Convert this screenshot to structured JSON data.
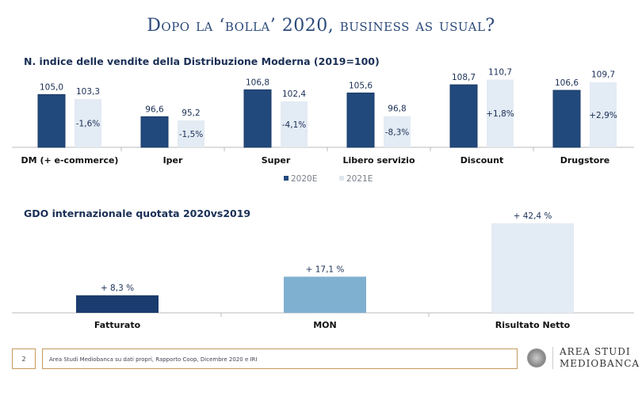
{
  "title": "Dopo la ‘bolla’ 2020, business as usual?",
  "chart_data": [
    {
      "type": "bar",
      "title": "N. indice delle vendite della Distribuzione Moderna  (2019=100)",
      "categories": [
        "DM (+ e-commerce)",
        "Iper",
        "Super",
        "Libero servizio",
        "Discount",
        "Drugstore"
      ],
      "series": [
        {
          "name": "2020E",
          "color": "#22497c",
          "values": [
            105.0,
            96.6,
            106.8,
            105.6,
            108.7,
            106.6
          ],
          "labels": [
            "105,0",
            "96,6",
            "106,8",
            "105,6",
            "108,7",
            "106,6"
          ]
        },
        {
          "name": "2021E",
          "color": "#e3ebf4",
          "values": [
            103.3,
            95.2,
            102.4,
            96.8,
            110.7,
            109.7
          ],
          "labels": [
            "103,3",
            "95,2",
            "102,4",
            "96,8",
            "110,7",
            "109,7"
          ],
          "changes": [
            "-1,6%",
            "-1,5%",
            "-4,1%",
            "-8,3%",
            "+1,8%",
            "+2,9%"
          ]
        }
      ],
      "ylim": [
        85,
        115
      ],
      "legend": "bottom"
    },
    {
      "type": "bar",
      "title": "GDO internazionale quotata 2020vs2019",
      "categories": [
        "Fatturato",
        "MON",
        "Risultato Netto"
      ],
      "values": [
        8.3,
        17.1,
        42.4
      ],
      "labels": [
        "+ 8,3 %",
        "+ 17,1 %",
        "+ 42,4 %"
      ],
      "colors": [
        "#1b3c6e",
        "#7fb0d0",
        "#e3ebf4"
      ],
      "ylim": [
        0,
        45
      ]
    }
  ],
  "footer": {
    "page": "2",
    "source": "Area Studi Mediobanca su dati propri, Rapporto Coop, Dicembre 2020 e IRI",
    "logo_line1": "AREA STUDI",
    "logo_line2": "MEDIOBANCA"
  }
}
